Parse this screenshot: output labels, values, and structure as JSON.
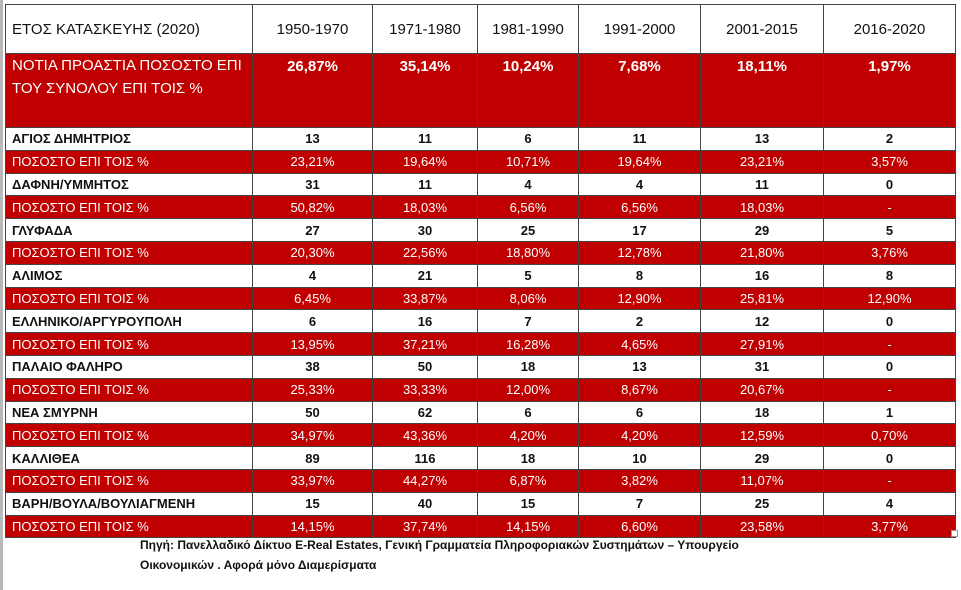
{
  "header": {
    "label": "ΕΤΟΣ ΚΑΤΑΣΚΕΥΗΣ (2020)",
    "periods": [
      "1950-1970",
      "1971-1980",
      "1981-1990",
      "1991-2000",
      "2001-2015",
      "2016-2020"
    ]
  },
  "summary": {
    "label": "ΝΟΤΙΑ ΠΡΟΑΣΤΙΑ ΠΟΣΟΣΤΟ ΕΠΙ ΤΟΥ ΣΥΝΟΛΟΥ ΕΠΙ ΤΟΙΣ %",
    "values": [
      "26,87%",
      "35,14%",
      "10,24%",
      "7,68%",
      "18,11%",
      "1,97%"
    ]
  },
  "pct_label": "ΠΟΣΟΣΤΟ  ΕΠΙ ΤΟΙΣ %",
  "areas": [
    {
      "name": "ΑΓΙΟΣ ΔΗΜΗΤΡΙΟΣ",
      "counts": [
        "13",
        "11",
        "6",
        "11",
        "13",
        "2"
      ],
      "pcts": [
        "23,21%",
        "19,64%",
        "10,71%",
        "19,64%",
        "23,21%",
        "3,57%"
      ]
    },
    {
      "name": "ΔΑΦΝΗ/ΥΜΜΗΤΟΣ",
      "counts": [
        "31",
        "11",
        "4",
        "4",
        "11",
        "0"
      ],
      "pcts": [
        "50,82%",
        "18,03%",
        "6,56%",
        "6,56%",
        "18,03%",
        "-"
      ]
    },
    {
      "name": "ΓΛΥΦΑΔΑ",
      "counts": [
        "27",
        "30",
        "25",
        "17",
        "29",
        "5"
      ],
      "pcts": [
        "20,30%",
        "22,56%",
        "18,80%",
        "12,78%",
        "21,80%",
        "3,76%"
      ]
    },
    {
      "name": "ΑΛΙΜΟΣ",
      "counts": [
        "4",
        "21",
        "5",
        "8",
        "16",
        "8"
      ],
      "pcts": [
        "6,45%",
        "33,87%",
        "8,06%",
        "12,90%",
        "25,81%",
        "12,90%"
      ]
    },
    {
      "name": "ΕΛΛΗΝΙΚΟ/ΑΡΓΥΡΟΥΠΟΛΗ",
      "counts": [
        "6",
        "16",
        "7",
        "2",
        "12",
        "0"
      ],
      "pcts": [
        "13,95%",
        "37,21%",
        "16,28%",
        "4,65%",
        "27,91%",
        "-"
      ]
    },
    {
      "name": "ΠΑΛΑΙΟ ΦΑΛΗΡΟ",
      "counts": [
        "38",
        "50",
        "18",
        "13",
        "31",
        "0"
      ],
      "pcts": [
        "25,33%",
        "33,33%",
        "12,00%",
        "8,67%",
        "20,67%",
        "-"
      ]
    },
    {
      "name": "ΝΕΑ ΣΜΥΡΝΗ",
      "counts": [
        "50",
        "62",
        "6",
        "6",
        "18",
        "1"
      ],
      "pcts": [
        "34,97%",
        "43,36%",
        "4,20%",
        "4,20%",
        "12,59%",
        "0,70%"
      ]
    },
    {
      "name": "ΚΑΛΛΙΘΕΑ",
      "counts": [
        "89",
        "116",
        "18",
        "10",
        "29",
        "0"
      ],
      "pcts": [
        "33,97%",
        "44,27%",
        "6,87%",
        "3,82%",
        "11,07%",
        "-"
      ]
    },
    {
      "name": "ΒΑΡΗ/ΒΟΥΛΑ/ΒΟΥΛΙΑΓΜΕΝΗ",
      "counts": [
        "15",
        "40",
        "15",
        "7",
        "25",
        "4"
      ],
      "pcts": [
        "14,15%",
        "37,74%",
        "14,15%",
        "6,60%",
        "23,58%",
        "3,77%"
      ]
    }
  ],
  "source": {
    "line1": "Πηγή: Πανελλαδικό Δίκτυο E-Real Estates, Γενική Γραμματεία Πληροφοριακών Συστημάτων – Υπουργείο",
    "line2": "Οικονομικών . Αφορά μόνο Διαμερίσματα"
  },
  "colors": {
    "accent_red": "#c00000",
    "text_on_red": "#ffffff"
  },
  "chart_data": {
    "type": "table",
    "title": "ΕΤΟΣ ΚΑΤΑΣΚΕΥΗΣ (2020)",
    "columns": [
      "1950-1970",
      "1971-1980",
      "1981-1990",
      "1991-2000",
      "2001-2015",
      "2016-2020"
    ],
    "summary_percent": [
      26.87,
      35.14,
      10.24,
      7.68,
      18.11,
      1.97
    ],
    "series": [
      {
        "name": "ΑΓΙΟΣ ΔΗΜΗΤΡΙΟΣ",
        "values": [
          13,
          11,
          6,
          11,
          13,
          2
        ]
      },
      {
        "name": "ΔΑΦΝΗ/ΥΜΜΗΤΟΣ",
        "values": [
          31,
          11,
          4,
          4,
          11,
          0
        ]
      },
      {
        "name": "ΓΛΥΦΑΔΑ",
        "values": [
          27,
          30,
          25,
          17,
          29,
          5
        ]
      },
      {
        "name": "ΑΛΙΜΟΣ",
        "values": [
          4,
          21,
          5,
          8,
          16,
          8
        ]
      },
      {
        "name": "ΕΛΛΗΝΙΚΟ/ΑΡΓΥΡΟΥΠΟΛΗ",
        "values": [
          6,
          16,
          7,
          2,
          12,
          0
        ]
      },
      {
        "name": "ΠΑΛΑΙΟ ΦΑΛΗΡΟ",
        "values": [
          38,
          50,
          18,
          13,
          31,
          0
        ]
      },
      {
        "name": "ΝΕΑ ΣΜΥΡΝΗ",
        "values": [
          50,
          62,
          6,
          6,
          18,
          1
        ]
      },
      {
        "name": "ΚΑΛΛΙΘΕΑ",
        "values": [
          89,
          116,
          18,
          10,
          29,
          0
        ]
      },
      {
        "name": "ΒΑΡΗ/ΒΟΥΛΑ/ΒΟΥΛΙΑΓΜΕΝΗ",
        "values": [
          15,
          40,
          15,
          7,
          25,
          4
        ]
      }
    ]
  }
}
